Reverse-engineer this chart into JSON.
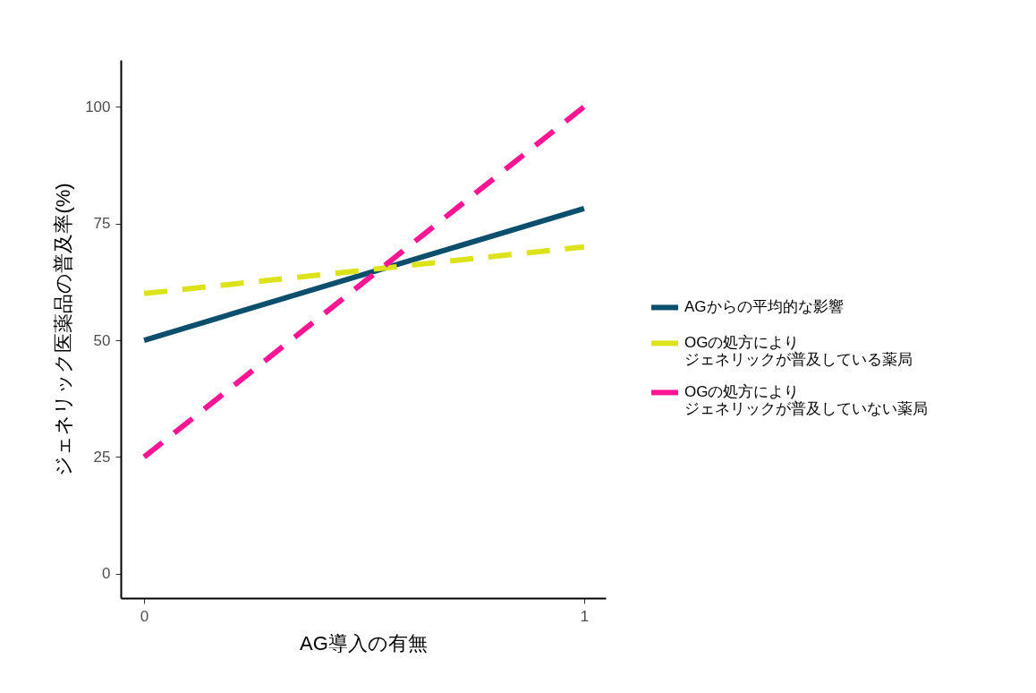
{
  "chart_data": {
    "type": "line",
    "xlabel": "AG導入の有無",
    "ylabel": "ジェネリック医薬品の普及率(%)",
    "x": [
      0,
      1
    ],
    "xlim": [
      -0.053,
      1.049
    ],
    "xticks": [
      0,
      1
    ],
    "ylim": [
      -5.2,
      110
    ],
    "yticks": [
      0,
      25,
      50,
      75,
      100
    ],
    "legend": "right",
    "series": [
      {
        "name": "AGからの平均的な影響",
        "color": "#0b4f6c",
        "line_style": "solid",
        "values": [
          50,
          78.2
        ]
      },
      {
        "name": "OGの処方によりジェネリックが普及している薬局",
        "color": "#dde31a",
        "line_style": "dashed",
        "values": [
          60,
          70
        ]
      },
      {
        "name": "OGの処方によりジェネリックが普及していない薬局",
        "color": "#ff1493",
        "line_style": "dashed",
        "values": [
          25,
          100
        ]
      }
    ]
  }
}
